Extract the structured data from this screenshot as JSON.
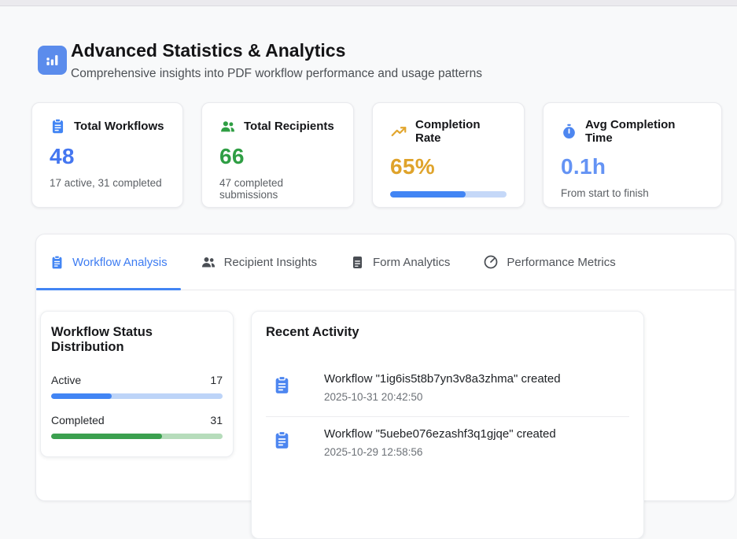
{
  "colors": {
    "primary_blue": "#4285f4",
    "blue_value": "#4476f0",
    "light_blue_value": "#6493f4",
    "green": "#2f9e44",
    "green_bar": "#3ba04f",
    "amber": "#dfa32b",
    "blue_track": "#c5d8f8",
    "green_track": "#b6dcbb",
    "page_bg": "#f8f9fa",
    "card_bg": "#ffffff",
    "card_border": "#e9eaee",
    "text_dark": "#17181b",
    "text_gray": "#5c6065",
    "header_icon_bg": "#5b8cec"
  },
  "header": {
    "title": "Advanced Statistics & Analytics",
    "subtitle": "Comprehensive insights into PDF workflow performance and usage patterns",
    "icon": "bar-chart-icon"
  },
  "stat_cards": [
    {
      "icon": "clipboard-icon",
      "title": "Total Workflows",
      "value": "48",
      "subtext": "17 active, 31 completed",
      "accent": "#4476f0"
    },
    {
      "icon": "users-icon",
      "title": "Total Recipients",
      "value": "66",
      "subtext": "47 completed submissions",
      "accent": "#2f9e44"
    },
    {
      "icon": "trending-up-icon",
      "title": "Completion Rate",
      "value": "65%",
      "progress_pct": 65,
      "accent": "#dfa32b"
    },
    {
      "icon": "stopwatch-icon",
      "title": "Avg Completion Time",
      "value": "0.1h",
      "subtext": "From start to finish",
      "accent": "#6493f4"
    }
  ],
  "tabs": [
    {
      "label": "Workflow Analysis",
      "icon": "clipboard-icon",
      "active": true
    },
    {
      "label": "Recipient Insights",
      "icon": "users-icon",
      "active": false
    },
    {
      "label": "Form Analytics",
      "icon": "document-icon",
      "active": false
    },
    {
      "label": "Performance Metrics",
      "icon": "gauge-icon",
      "active": false
    }
  ],
  "status_panel": {
    "title": "Workflow Status Distribution",
    "rows": [
      {
        "label": "Active",
        "value": "17",
        "pct": 35.4
      },
      {
        "label": "Completed",
        "value": "31",
        "pct": 64.6
      }
    ]
  },
  "activity_panel": {
    "title": "Recent Activity",
    "items": [
      {
        "icon": "clipboard-icon",
        "text": "Workflow \"1ig6is5t8b7yn3v8a3zhma\" created",
        "timestamp": "2025-10-31 20:42:50"
      },
      {
        "icon": "clipboard-icon",
        "text": "Workflow \"5uebe076ezashf3q1gjqe\" created",
        "timestamp": "2025-10-29 12:58:56"
      }
    ]
  }
}
